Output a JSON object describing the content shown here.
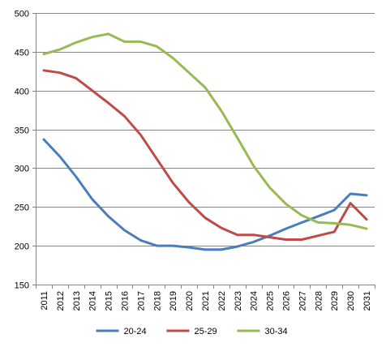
{
  "chart_data": {
    "type": "line",
    "title": "",
    "xlabel": "",
    "ylabel": "",
    "x": [
      "2011",
      "2012",
      "2013",
      "2014",
      "2015",
      "2016",
      "2017",
      "2018",
      "2019",
      "2020",
      "2021",
      "2022",
      "2023",
      "2024",
      "2025",
      "2026",
      "2027",
      "2028",
      "2029",
      "2030",
      "2031"
    ],
    "ylim": [
      150,
      500
    ],
    "yticks": [
      150,
      200,
      250,
      300,
      350,
      400,
      450,
      500
    ],
    "grid": "horizontal",
    "legend_position": "bottom",
    "series": [
      {
        "name": "20-24",
        "color": "#4A7EBB",
        "values": [
          337,
          315,
          289,
          260,
          238,
          220,
          207,
          200,
          200,
          198,
          195,
          195,
          199,
          205,
          213,
          222,
          230,
          238,
          246,
          267,
          265
        ]
      },
      {
        "name": "25-29",
        "color": "#BE4B48",
        "values": [
          426,
          423,
          416,
          400,
          384,
          367,
          343,
          312,
          281,
          256,
          236,
          223,
          214,
          214,
          211,
          208,
          208,
          213,
          218,
          255,
          234
        ]
      },
      {
        "name": "30-34",
        "color": "#98B954",
        "values": [
          447,
          453,
          462,
          469,
          473,
          463,
          463,
          457,
          442,
          423,
          404,
          374,
          339,
          303,
          275,
          254,
          239,
          230,
          229,
          227,
          222
        ]
      }
    ]
  }
}
